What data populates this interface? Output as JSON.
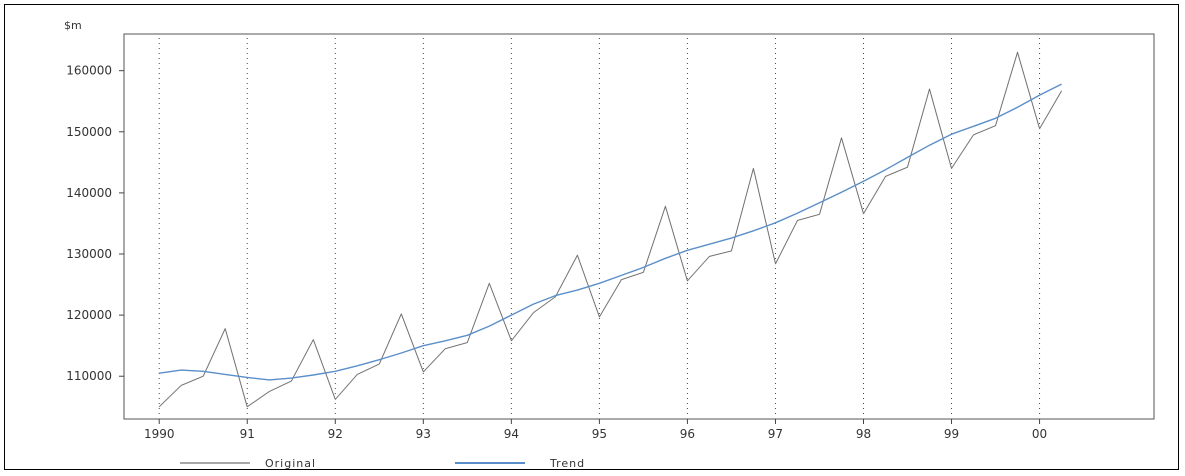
{
  "chart_data": {
    "type": "line",
    "unit_label": "$m",
    "x_ticks": [
      "1990",
      "91",
      "92",
      "93",
      "94",
      "95",
      "96",
      "97",
      "98",
      "99",
      "00"
    ],
    "y_ticks": [
      "110000",
      "120000",
      "130000",
      "140000",
      "150000",
      "160000"
    ],
    "ylim": [
      103000,
      166000
    ],
    "xlim": [
      1989.6,
      2001.3
    ],
    "grid": "dotted vertical",
    "legend_position": "bottom",
    "series": [
      {
        "name": "Original",
        "color": "#a8a8a8",
        "x": [
          1990.0,
          1990.25,
          1990.5,
          1990.75,
          1991.0,
          1991.25,
          1991.5,
          1991.75,
          1992.0,
          1992.25,
          1992.5,
          1992.75,
          1993.0,
          1993.25,
          1993.5,
          1993.75,
          1994.0,
          1994.25,
          1994.5,
          1994.75,
          1995.0,
          1995.25,
          1995.5,
          1995.75,
          1996.0,
          1996.25,
          1996.5,
          1996.75,
          1997.0,
          1997.25,
          1997.5,
          1997.75,
          1998.0,
          1998.25,
          1998.5,
          1998.75,
          1999.0,
          1999.25,
          1999.5,
          1999.75,
          2000.0,
          2000.25
        ],
        "values": [
          105000,
          108500,
          110000,
          117800,
          105000,
          107500,
          109200,
          116000,
          106200,
          110300,
          112000,
          120200,
          110700,
          114500,
          115500,
          125200,
          115800,
          120400,
          123000,
          129800,
          119700,
          125800,
          127000,
          137800,
          125600,
          129600,
          130500,
          144000,
          128400,
          135500,
          136500,
          149000,
          136600,
          142700,
          144200,
          157000,
          144000,
          149500,
          151000,
          163000,
          150500,
          156700
        ]
      },
      {
        "name": "Trend",
        "color": "#5b8fc9",
        "x": [
          1990.0,
          1990.25,
          1990.5,
          1990.75,
          1991.0,
          1991.25,
          1991.5,
          1991.75,
          1992.0,
          1992.25,
          1992.5,
          1992.75,
          1993.0,
          1993.25,
          1993.5,
          1993.75,
          1994.0,
          1994.25,
          1994.5,
          1994.75,
          1995.0,
          1995.25,
          1995.5,
          1995.75,
          1996.0,
          1996.25,
          1996.5,
          1996.75,
          1997.0,
          1997.25,
          1997.5,
          1997.75,
          1998.0,
          1998.25,
          1998.5,
          1998.75,
          1999.0,
          1999.25,
          1999.5,
          1999.75,
          2000.0,
          2000.25
        ],
        "values": [
          110500,
          111000,
          110800,
          110300,
          109800,
          109400,
          109700,
          110200,
          110800,
          111700,
          112700,
          113800,
          115000,
          115800,
          116700,
          118200,
          120000,
          121800,
          123200,
          124100,
          125200,
          126500,
          127800,
          129300,
          130600,
          131600,
          132600,
          133800,
          135100,
          136700,
          138400,
          140100,
          141900,
          143800,
          145800,
          147800,
          149600,
          150900,
          152200,
          154000,
          156000,
          157800
        ]
      }
    ]
  }
}
